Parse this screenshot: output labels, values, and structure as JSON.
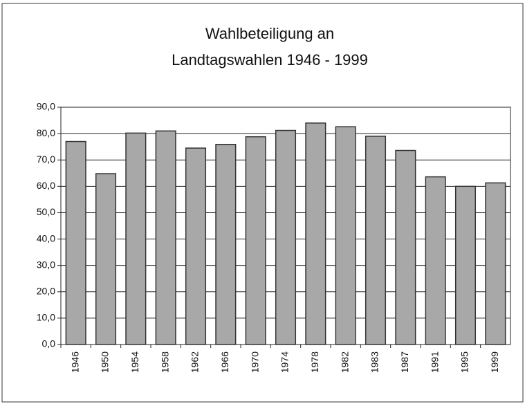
{
  "chart_data": {
    "type": "bar",
    "title": [
      "Wahlbeteiligung an",
      "Landtagswahlen 1946 - 1999"
    ],
    "categories": [
      "1946",
      "1950",
      "1954",
      "1958",
      "1962",
      "1966",
      "1970",
      "1974",
      "1978",
      "1982",
      "1983",
      "1987",
      "1991",
      "1995",
      "1999"
    ],
    "values": [
      77.0,
      64.8,
      80.2,
      81.0,
      74.5,
      75.9,
      78.8,
      81.2,
      84.0,
      82.6,
      79.0,
      73.6,
      63.6,
      60.0,
      61.3
    ],
    "color": "#a8a8a8",
    "ylim": [
      0,
      90
    ],
    "yticks": [
      {
        "value": 0,
        "label": "0,0"
      },
      {
        "value": 10,
        "label": "10,0"
      },
      {
        "value": 20,
        "label": "20,0"
      },
      {
        "value": 30,
        "label": "30,0"
      },
      {
        "value": 40,
        "label": "40,0"
      },
      {
        "value": 50,
        "label": "50,0"
      },
      {
        "value": 60,
        "label": "60,0"
      },
      {
        "value": 70,
        "label": "70,0"
      },
      {
        "value": 80,
        "label": "80,0"
      },
      {
        "value": 90,
        "label": "90,0"
      }
    ],
    "grid": true
  }
}
